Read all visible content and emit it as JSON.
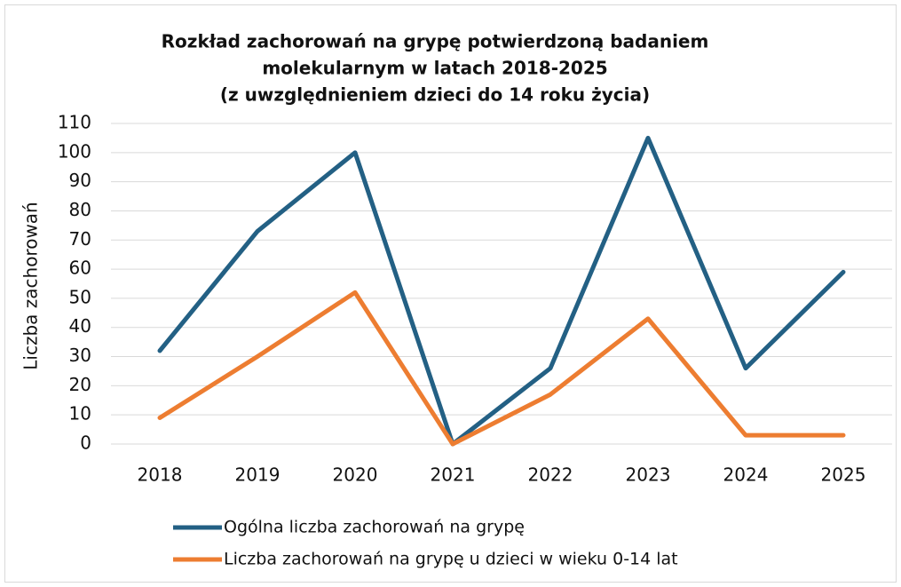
{
  "chart_data": {
    "type": "line",
    "title": [
      "Rozkład zachorowań na grypę potwierdzoną badaniem",
      "molekularnym w latach 2018-2025",
      "(z uwzględnieniem dzieci do 14 roku życia)"
    ],
    "y_label": "Liczba zachorowań",
    "categories": [
      "2018",
      "2019",
      "2020",
      "2021",
      "2022",
      "2023",
      "2024",
      "2025"
    ],
    "series": [
      {
        "name": "Ogólna liczba zachorowań na grypę",
        "color": "#236084",
        "values": [
          32,
          73,
          100,
          0,
          26,
          105,
          26,
          59
        ]
      },
      {
        "name": "Liczba zachorowań na grypę u dzieci w wieku 0-14 lat",
        "color": "#ed7d31",
        "values": [
          9,
          30,
          52,
          0,
          17,
          43,
          3,
          3
        ]
      }
    ],
    "ylim": [
      0,
      110
    ],
    "yticks": [
      0,
      10,
      20,
      30,
      40,
      50,
      60,
      70,
      80,
      90,
      100,
      110
    ],
    "grid": true,
    "legend": "bottom"
  }
}
